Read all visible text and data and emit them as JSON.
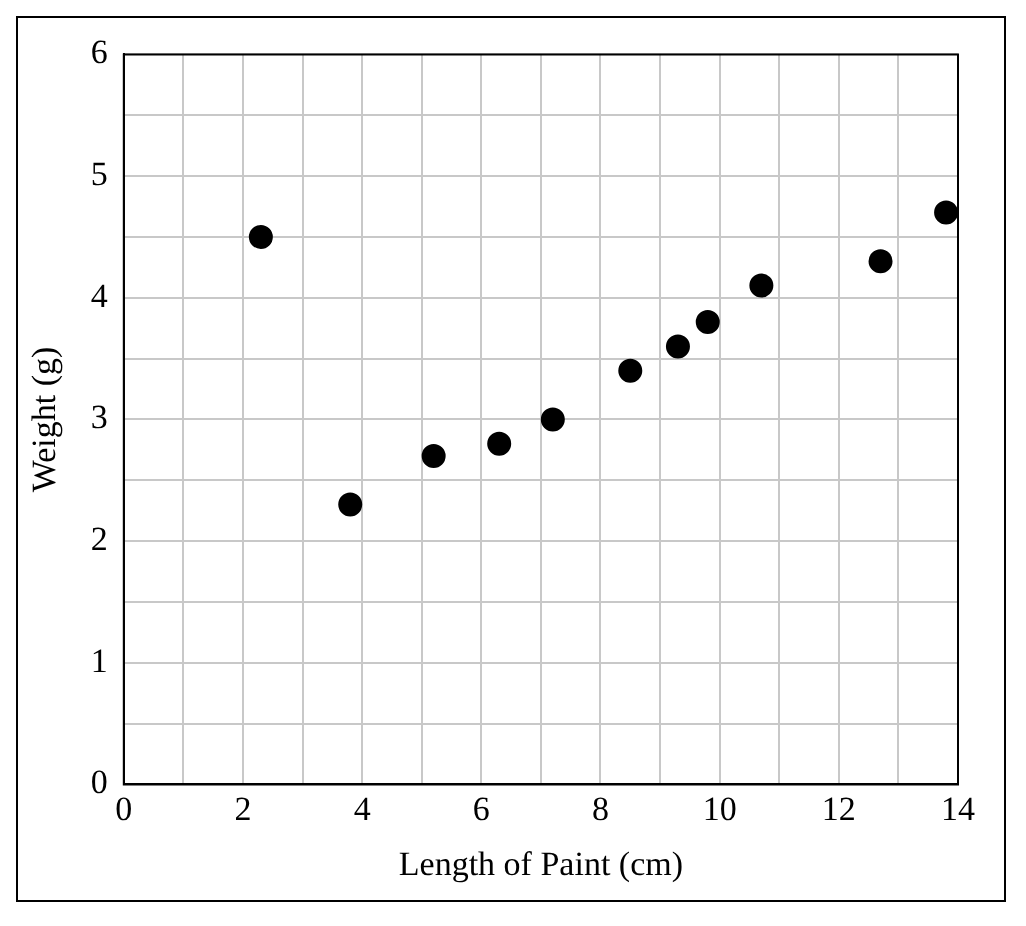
{
  "chart_data": {
    "type": "scatter",
    "xlabel": "Length of Paint (cm)",
    "ylabel": "Weight (g)",
    "x": [
      2.3,
      3.8,
      5.2,
      6.3,
      7.2,
      8.5,
      9.3,
      9.8,
      10.7,
      12.7,
      13.8
    ],
    "values": [
      4.5,
      2.3,
      2.7,
      2.8,
      3.0,
      3.4,
      3.6,
      3.8,
      4.1,
      4.3,
      4.7
    ],
    "color": "#000000",
    "marker": "circle",
    "xlim": [
      0,
      14
    ],
    "ylim": [
      0,
      6
    ],
    "xticks": [
      0,
      {
        "value": 1,
        "label": null
      },
      2,
      {
        "value": 3,
        "label": null
      },
      4,
      {
        "value": 5,
        "label": null
      },
      6,
      {
        "value": 7,
        "label": null
      },
      8,
      {
        "value": 9,
        "label": null
      },
      10,
      {
        "value": 11,
        "label": null
      },
      12,
      {
        "value": 13,
        "label": null
      },
      14
    ],
    "yticks": [
      0,
      {
        "value": 0.5,
        "label": null
      },
      1,
      {
        "value": 1.5,
        "label": null
      },
      2,
      {
        "value": 2.5,
        "label": null
      },
      3,
      {
        "value": 3.5,
        "label": null
      },
      4,
      {
        "value": 4.5,
        "label": null
      },
      5,
      {
        "value": 5.5,
        "label": null
      },
      6
    ],
    "grid": true
  }
}
